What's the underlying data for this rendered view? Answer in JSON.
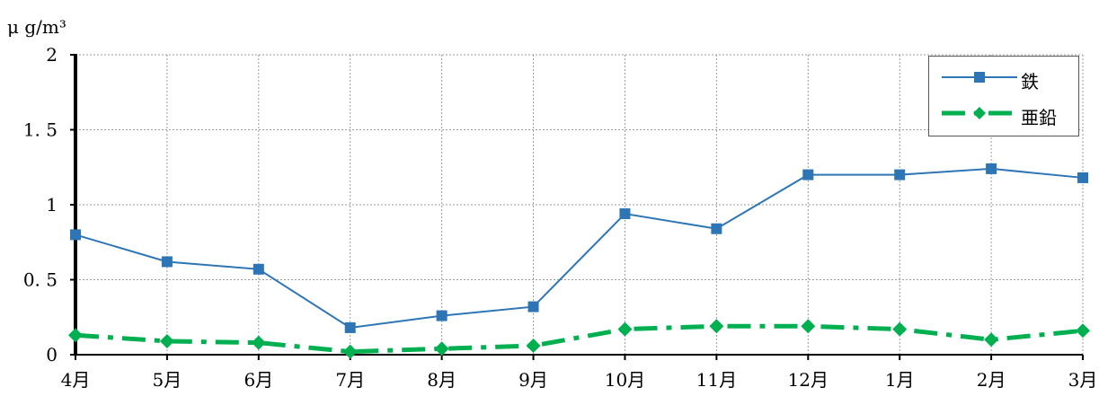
{
  "chart_data": {
    "type": "line",
    "ylabel": "μ g/m³",
    "categories": [
      "4月",
      "5月",
      "6月",
      "7月",
      "8月",
      "9月",
      "10月",
      "11月",
      "12月",
      "1月",
      "2月",
      "3月"
    ],
    "ylim": [
      0,
      2
    ],
    "yticks": [
      {
        "value": 0,
        "label": "0"
      },
      {
        "value": 0.5,
        "label": "0. 5"
      },
      {
        "value": 1,
        "label": "1"
      },
      {
        "value": 1.5,
        "label": "1. 5"
      },
      {
        "value": 2,
        "label": "2"
      }
    ],
    "grid": true,
    "legend_position": "top-right",
    "series": [
      {
        "name": "鉄",
        "color": "#2E75B6",
        "marker": "square",
        "line_style": "solid",
        "values": [
          0.8,
          0.62,
          0.57,
          0.18,
          0.26,
          0.32,
          0.94,
          0.84,
          1.2,
          1.2,
          1.24,
          1.18
        ]
      },
      {
        "name": "亜鉛",
        "color": "#00B050",
        "marker": "diamond",
        "line_style": "dash-dot",
        "values": [
          0.13,
          0.09,
          0.08,
          0.02,
          0.04,
          0.06,
          0.17,
          0.19,
          0.19,
          0.17,
          0.1,
          0.16
        ]
      }
    ]
  }
}
